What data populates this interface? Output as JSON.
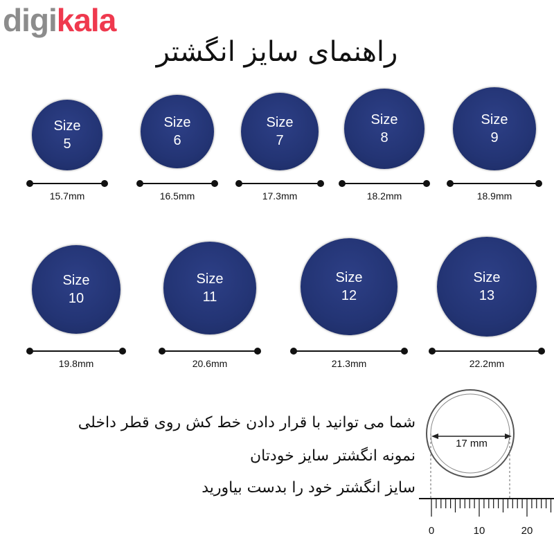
{
  "brand": {
    "part1": "digi",
    "part2": "kala"
  },
  "title": "راهنمای سایز انگشتر",
  "size_label": "Size",
  "rings": [
    {
      "size": "5",
      "mm": "15.7mm"
    },
    {
      "size": "6",
      "mm": "16.5mm"
    },
    {
      "size": "7",
      "mm": "17.3mm"
    },
    {
      "size": "8",
      "mm": "18.2mm"
    },
    {
      "size": "9",
      "mm": "18.9mm"
    },
    {
      "size": "10",
      "mm": "19.8mm"
    },
    {
      "size": "11",
      "mm": "20.6mm"
    },
    {
      "size": "12",
      "mm": "21.3mm"
    },
    {
      "size": "13",
      "mm": "22.2mm"
    }
  ],
  "instructions": [
    "شما می توانید با قرار دادن خط کش روی قطر داخلی",
    "نمونه انگشتر سایز خودتان",
    "سایز انگشتر خود را بدست بیاورید"
  ],
  "diagram": {
    "diameter_label": "17 mm",
    "ruler_labels": [
      "0",
      "10",
      "20"
    ]
  },
  "colors": {
    "ring": "#233474",
    "brand_red": "#ef394e",
    "brand_grey": "#8c8c8c"
  }
}
